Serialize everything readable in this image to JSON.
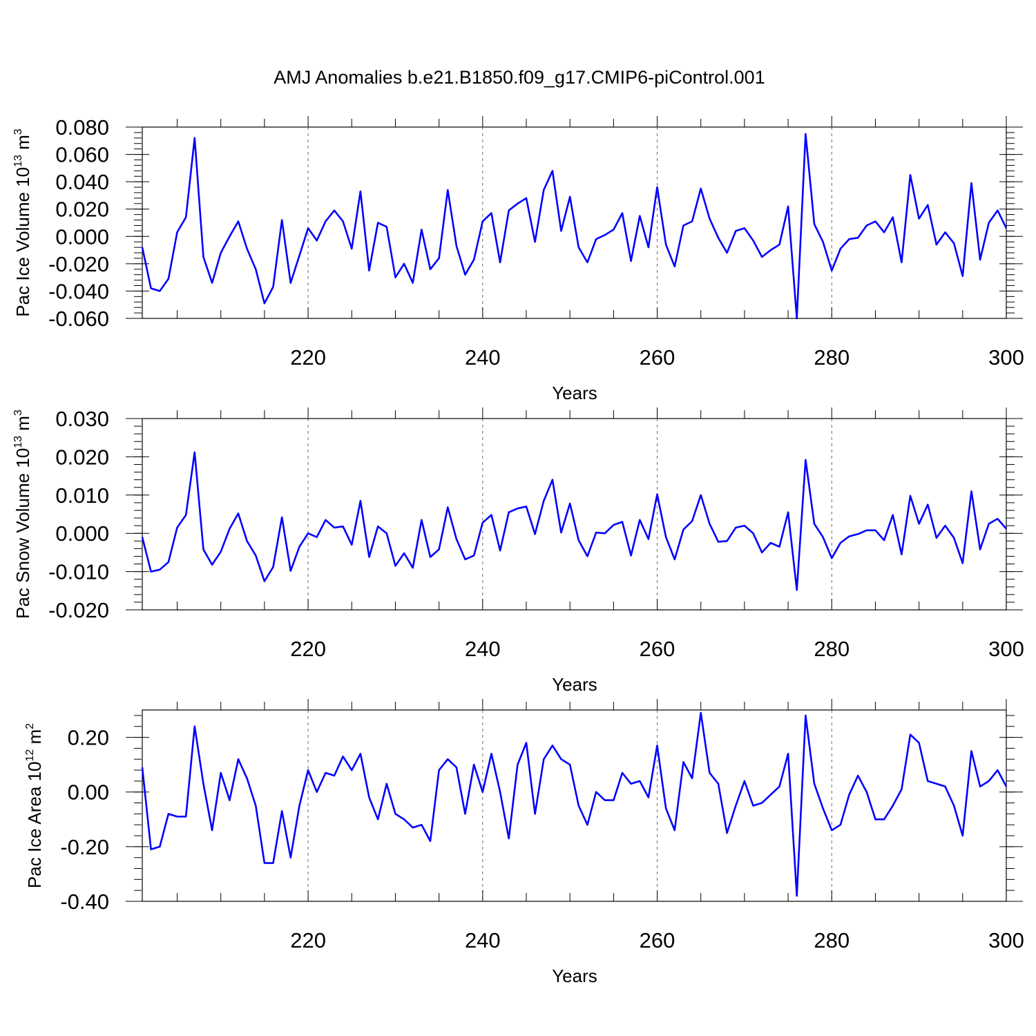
{
  "figure": {
    "title": "AMJ Anomalies b.e21.B1850.f09_g17.CMIP6-piControl.001",
    "line_color": "#0000ff"
  },
  "chart_data": [
    {
      "type": "line",
      "ylabel": {
        "prefix": "Pac Ice Volume 10",
        "exp": "13",
        "unit": " m",
        "unit_exp": "3"
      },
      "xlabel": "Years",
      "xlim": [
        201,
        300
      ],
      "ylim": [
        -0.06,
        0.08
      ],
      "xticks": [
        220,
        240,
        260,
        280,
        300
      ],
      "yticks": [
        -0.06,
        -0.04,
        -0.02,
        0.0,
        0.02,
        0.04,
        0.06,
        0.08
      ],
      "ytick_labels": [
        "-0.060",
        "-0.040",
        "-0.020",
        "0.000",
        "0.020",
        "0.040",
        "0.060",
        "0.080"
      ],
      "x_start": 201,
      "grid": "dashed vertical at major x ticks",
      "values": [
        -0.008,
        -0.038,
        -0.04,
        -0.031,
        0.003,
        0.014,
        0.072,
        -0.015,
        -0.034,
        -0.012,
        0.0,
        0.011,
        -0.009,
        -0.024,
        -0.049,
        -0.037,
        0.012,
        -0.034,
        -0.014,
        0.006,
        -0.003,
        0.011,
        0.019,
        0.011,
        -0.009,
        0.033,
        -0.025,
        0.01,
        0.007,
        -0.03,
        -0.02,
        -0.034,
        0.005,
        -0.024,
        -0.016,
        0.034,
        -0.007,
        -0.028,
        -0.017,
        0.011,
        0.017,
        -0.019,
        0.019,
        0.024,
        0.028,
        -0.004,
        0.034,
        0.048,
        0.004,
        0.029,
        -0.008,
        -0.019,
        -0.002,
        0.001,
        0.005,
        0.017,
        -0.018,
        0.015,
        -0.008,
        0.036,
        -0.006,
        -0.022,
        0.008,
        0.011,
        0.035,
        0.013,
        -0.001,
        -0.012,
        0.004,
        0.006,
        -0.003,
        -0.015,
        -0.01,
        -0.006,
        0.022,
        -0.06,
        0.075,
        0.009,
        -0.004,
        -0.025,
        -0.009,
        -0.002,
        -0.001,
        0.008,
        0.011,
        0.003,
        0.014,
        -0.019,
        0.045,
        0.013,
        0.023,
        -0.006,
        0.003,
        -0.005,
        -0.029,
        0.039,
        -0.017,
        0.01,
        0.019,
        0.006
      ]
    },
    {
      "type": "line",
      "ylabel": {
        "prefix": "Pac Snow Volume 10",
        "exp": "13",
        "unit": " m",
        "unit_exp": "3"
      },
      "xlabel": "Years",
      "xlim": [
        201,
        300
      ],
      "ylim": [
        -0.02,
        0.03
      ],
      "xticks": [
        220,
        240,
        260,
        280,
        300
      ],
      "yticks": [
        -0.02,
        -0.01,
        0.0,
        0.01,
        0.02,
        0.03
      ],
      "ytick_labels": [
        "-0.020",
        "-0.010",
        "0.000",
        "0.010",
        "0.020",
        "0.030"
      ],
      "x_start": 201,
      "grid": "dashed vertical at major x ticks",
      "values": [
        -0.001,
        -0.01,
        -0.0095,
        -0.0075,
        0.0015,
        0.0048,
        0.0212,
        -0.0042,
        -0.0082,
        -0.0048,
        0.0012,
        0.0052,
        -0.002,
        -0.0058,
        -0.0125,
        -0.0088,
        0.0042,
        -0.0098,
        -0.0035,
        0.0,
        -0.001,
        0.0035,
        0.0015,
        0.0018,
        -0.003,
        0.0085,
        -0.0062,
        0.0018,
        0.0,
        -0.0085,
        -0.0052,
        -0.009,
        0.0035,
        -0.0062,
        -0.0042,
        0.0068,
        -0.0015,
        -0.0068,
        -0.0058,
        0.0028,
        0.0048,
        -0.0045,
        0.0055,
        0.0065,
        0.007,
        -0.0002,
        0.0085,
        0.014,
        0.0002,
        0.0078,
        -0.0018,
        -0.006,
        0.0002,
        0.0,
        0.0022,
        0.003,
        -0.0058,
        0.0035,
        -0.0015,
        0.0102,
        -0.001,
        -0.0068,
        0.001,
        0.0032,
        0.01,
        0.0025,
        -0.0022,
        -0.002,
        0.0015,
        0.002,
        0.0,
        -0.005,
        -0.0025,
        -0.0035,
        0.0055,
        -0.0148,
        0.0192,
        0.0025,
        -0.001,
        -0.0065,
        -0.0025,
        -0.0008,
        -0.0002,
        0.0008,
        0.0008,
        -0.0018,
        0.0048,
        -0.0055,
        0.0098,
        0.0025,
        0.0075,
        -0.0012,
        0.002,
        -0.0012,
        -0.0078,
        0.011,
        -0.0042,
        0.0025,
        0.0038,
        0.0012
      ]
    },
    {
      "type": "line",
      "ylabel": {
        "prefix": "Pac Ice Area 10",
        "exp": "12",
        "unit": " m",
        "unit_exp": "2"
      },
      "xlabel": "Years",
      "xlim": [
        201,
        300
      ],
      "ylim": [
        -0.4,
        0.3
      ],
      "xticks": [
        220,
        240,
        260,
        280,
        300
      ],
      "yticks": [
        -0.4,
        -0.2,
        0.0,
        0.2
      ],
      "ytick_labels": [
        "-0.40",
        "-0.20",
        "0.00",
        "0.20"
      ],
      "x_start": 201,
      "grid": "dashed vertical at major x ticks",
      "values": [
        0.09,
        -0.21,
        -0.2,
        -0.08,
        -0.09,
        -0.09,
        0.24,
        0.03,
        -0.14,
        0.07,
        -0.03,
        0.12,
        0.05,
        -0.05,
        -0.26,
        -0.26,
        -0.07,
        -0.24,
        -0.05,
        0.08,
        0.0,
        0.07,
        0.06,
        0.13,
        0.08,
        0.14,
        -0.02,
        -0.1,
        0.03,
        -0.08,
        -0.1,
        -0.13,
        -0.12,
        -0.18,
        0.08,
        0.12,
        0.09,
        -0.08,
        0.1,
        0.0,
        0.14,
        0.0,
        -0.17,
        0.1,
        0.18,
        -0.08,
        0.12,
        0.17,
        0.12,
        0.1,
        -0.05,
        -0.12,
        0.0,
        -0.03,
        -0.03,
        0.07,
        0.03,
        0.04,
        -0.02,
        0.17,
        -0.06,
        -0.14,
        0.11,
        0.05,
        0.29,
        0.07,
        0.03,
        -0.15,
        -0.05,
        0.04,
        -0.05,
        -0.04,
        -0.01,
        0.02,
        0.14,
        -0.38,
        0.28,
        0.03,
        -0.06,
        -0.14,
        -0.12,
        -0.01,
        0.06,
        0.0,
        -0.1,
        -0.1,
        -0.05,
        0.01,
        0.21,
        0.18,
        0.04,
        0.03,
        0.02,
        -0.05,
        -0.16,
        0.15,
        0.02,
        0.04,
        0.08,
        0.02
      ]
    }
  ]
}
